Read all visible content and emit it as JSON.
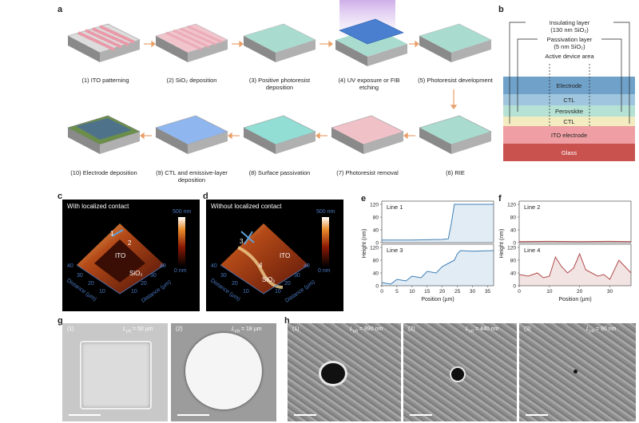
{
  "panels": {
    "a": "a",
    "b": "b",
    "c": "c",
    "d": "d",
    "e": "e",
    "f": "f",
    "g": "g",
    "h": "h"
  },
  "steps": [
    "(1) ITO patterning",
    "(2) SiO₂ deposition",
    "(3) Positive photoresist deposition",
    "(4) UV exposure or FIB etching",
    "(5) Photoresist development",
    "(6) RIE",
    "(7) Photoresist removal",
    "(8) Surface passivation",
    "(9) CTL and emissive-layer deposition",
    "(10) Electrode deposition"
  ],
  "stack": {
    "insulating": "Insulating layer",
    "insulating_detail": "(130 nm SiO₂)",
    "passivation": "Passivation layer",
    "passivation_detail": "(5 nm SiO₂)",
    "active": "Active device area",
    "layers": [
      "Electrode",
      "CTL",
      "Perovskite",
      "CTL",
      "ITO electrode",
      "Glass"
    ]
  },
  "afm_c": {
    "title": "With localized contact",
    "scale_top": "500 nm",
    "scale_bottom": "0 nm",
    "ito": "ITO",
    "sio": "SiO₂",
    "m1": "1",
    "m2": "2",
    "axis": "Distance (µm)",
    "ticks": [
      "40",
      "30",
      "20",
      "10"
    ]
  },
  "afm_d": {
    "title": "Without localized contact",
    "scale_top": "500 nm",
    "scale_bottom": "0 nm",
    "ito": "ITO",
    "sio": "SiO₂",
    "m3": "3",
    "m4": "4",
    "axis": "Distance (µm)",
    "ticks": [
      "40",
      "30",
      "20",
      "10"
    ]
  },
  "chart_data": [
    {
      "type": "line",
      "panel": "e",
      "title": "Line 1",
      "ylabel": "Height (nm)",
      "xlabel": "Position (µm)",
      "xlim": [
        0,
        37
      ],
      "ylim": [
        0,
        130
      ],
      "x": [
        0,
        5,
        10,
        15,
        20,
        22,
        23,
        24,
        30,
        37
      ],
      "values": [
        8,
        8,
        8,
        9,
        10,
        12,
        60,
        120,
        120,
        120
      ],
      "yticks": [
        "0",
        "40",
        "80",
        "120"
      ]
    },
    {
      "type": "line",
      "panel": "e",
      "title": "Line 3",
      "ylabel": "Height (nm)",
      "xlabel": "Position (µm)",
      "xlim": [
        0,
        37
      ],
      "ylim": [
        0,
        130
      ],
      "x": [
        0,
        3,
        5,
        8,
        10,
        13,
        15,
        18,
        20,
        22,
        24,
        25,
        26,
        30,
        37
      ],
      "values": [
        10,
        5,
        20,
        15,
        30,
        25,
        45,
        40,
        60,
        70,
        80,
        100,
        110,
        108,
        110
      ],
      "yticks": [
        "0",
        "40",
        "80",
        "120"
      ],
      "xticks": [
        "0",
        "5",
        "10",
        "15",
        "20",
        "25",
        "30",
        "35"
      ]
    },
    {
      "type": "line",
      "panel": "f",
      "title": "Line 2",
      "ylabel": "Height (nm)",
      "xlabel": "Position (µm)",
      "xlim": [
        0,
        37
      ],
      "ylim": [
        0,
        130
      ],
      "x": [
        0,
        10,
        20,
        30,
        37
      ],
      "values": [
        3,
        4,
        3,
        4,
        3
      ],
      "yticks": [
        "0",
        "40",
        "80",
        "120"
      ]
    },
    {
      "type": "line",
      "panel": "f",
      "title": "Line 4",
      "ylabel": "Height (nm)",
      "xlabel": "Position (µm)",
      "xlim": [
        0,
        37
      ],
      "ylim": [
        0,
        130
      ],
      "x": [
        0,
        3,
        6,
        8,
        10,
        12,
        14,
        16,
        18,
        20,
        22,
        24,
        26,
        28,
        30,
        33,
        35,
        37
      ],
      "values": [
        35,
        30,
        40,
        25,
        30,
        90,
        60,
        40,
        55,
        100,
        50,
        40,
        30,
        35,
        20,
        80,
        60,
        40
      ],
      "yticks": [
        "0",
        "40",
        "80",
        "120"
      ],
      "xticks": [
        "0",
        "10",
        "20",
        "30"
      ]
    }
  ],
  "sem_g": [
    {
      "idx": "(1)",
      "lch": "L",
      "sub": "ch",
      "val": " = 50 µm"
    },
    {
      "idx": "(2)",
      "lch": "L",
      "sub": "ch",
      "val": " = 18 µm"
    }
  ],
  "sem_h": [
    {
      "idx": "(1)",
      "lch": "L",
      "sub": "ch",
      "val": " = 890 nm"
    },
    {
      "idx": "(2)",
      "lch": "L",
      "sub": "ch",
      "val": " = 440 nm"
    },
    {
      "idx": "(3)",
      "lch": "L",
      "sub": "ch",
      "val": " = 90 nm"
    }
  ]
}
